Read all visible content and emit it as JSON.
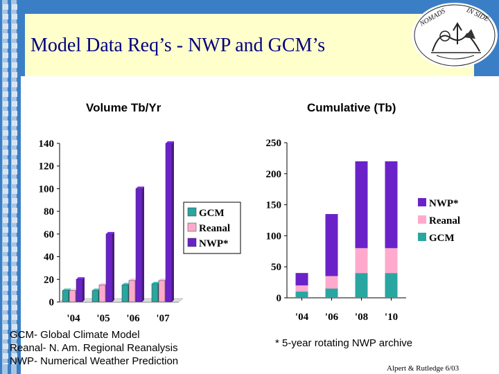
{
  "slide": {
    "title": "Model Data Req’s - NWP and GCM’s",
    "logo_text_left": "NOMADS",
    "logo_text_right": "IN SIDE",
    "credit": "Alpert & Rutledge 6/03",
    "accent_color": "#3a7fc6",
    "title_box_color": "#ffffcc"
  },
  "footnotes": {
    "line1": "GCM- Global Climate Model",
    "line2": "Reanal- N. Am. Regional Reanalysis",
    "line3": "NWP- Numerical Weather Prediction",
    "archive_note": "* 5-year rotating NWP archive"
  },
  "chart_data": [
    {
      "type": "bar",
      "title": "Volume Tb/Yr",
      "categories": [
        "'04",
        "'05",
        "'06",
        "'07"
      ],
      "series": [
        {
          "name": "GCM",
          "color": "#2aa6a0",
          "values": [
            10,
            10,
            15,
            16
          ]
        },
        {
          "name": "Reanal",
          "color": "#ffaacc",
          "values": [
            10,
            15,
            19,
            19
          ]
        },
        {
          "name": "NWP*",
          "color": "#6a22c8",
          "values": [
            20,
            60,
            100,
            140
          ]
        }
      ],
      "ylim": [
        0,
        140
      ],
      "yticks": [
        0,
        20,
        40,
        60,
        80,
        100,
        120,
        140
      ],
      "legend_position": "right",
      "grid": false
    },
    {
      "type": "bar",
      "stacked": true,
      "title": "Cumulative (Tb)",
      "categories": [
        "'04",
        "'06",
        "'08",
        "'10"
      ],
      "series": [
        {
          "name": "NWP*",
          "color": "#6a22c8",
          "values": [
            20,
            100,
            140,
            140
          ]
        },
        {
          "name": "Reanal",
          "color": "#ffaacc",
          "values": [
            10,
            20,
            40,
            40
          ]
        },
        {
          "name": "GCM",
          "color": "#2aa6a0",
          "values": [
            10,
            15,
            40,
            40
          ]
        }
      ],
      "ylim": [
        0,
        250
      ],
      "yticks": [
        0,
        50,
        100,
        150,
        200,
        250
      ],
      "legend_position": "right",
      "grid": false
    }
  ]
}
